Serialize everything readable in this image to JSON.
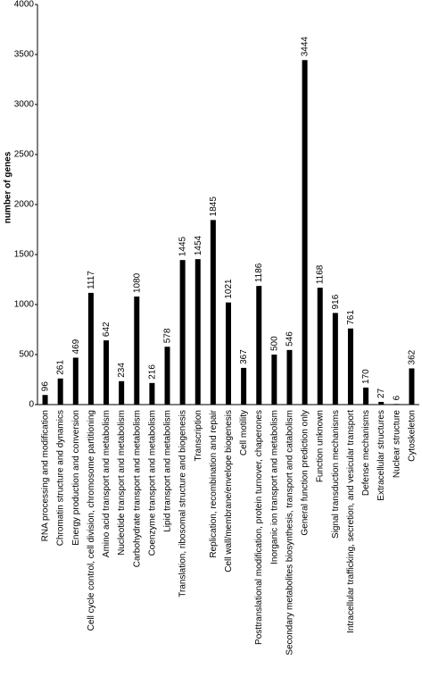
{
  "chart_data": {
    "type": "bar",
    "y_label": "number of genes",
    "categories": [
      "RNA processing and modification",
      "Chromatin structure and dynamics",
      "Energy production and conversion",
      "Cell cycle control, cell division, chromosome partitioning",
      "Amino acid transport and metabolism",
      "Nucleotide transport and metabolism",
      "Carbohydrate transport and metabolism",
      "Coenzyme transport and metabolism",
      "Lipid transport and metabolism",
      "Translation, ribosomal structure and biogenesis",
      "Transcription",
      "Replication, recombination and repair",
      "Cell wall/membrane/envelope biogenesis",
      "Cell motility",
      "Posttranslational modification, protein turnover, chaperones",
      "Inorganic ion transport and metabolism",
      "Secondary metabolites biosynthesis, transport and catabolism",
      "General function prediction only",
      "Function unknown",
      "Signal transduction mechanisms",
      "Intracellular trafficking, secretion, and vesicular transport",
      "Defense mechanisms",
      "Extracellular structures",
      "Nuclear structure",
      "Cytoskeleton"
    ],
    "values": [
      96,
      261,
      469,
      1117,
      642,
      234,
      1080,
      216,
      578,
      1445,
      1454,
      1845,
      1021,
      367,
      1186,
      500,
      546,
      3444,
      1168,
      916,
      761,
      170,
      27,
      6,
      362
    ],
    "color": "#000000",
    "ylim": [
      0,
      4000
    ],
    "yticks": [
      0,
      500,
      1000,
      1500,
      2000,
      2500,
      3000,
      3500,
      4000
    ]
  }
}
